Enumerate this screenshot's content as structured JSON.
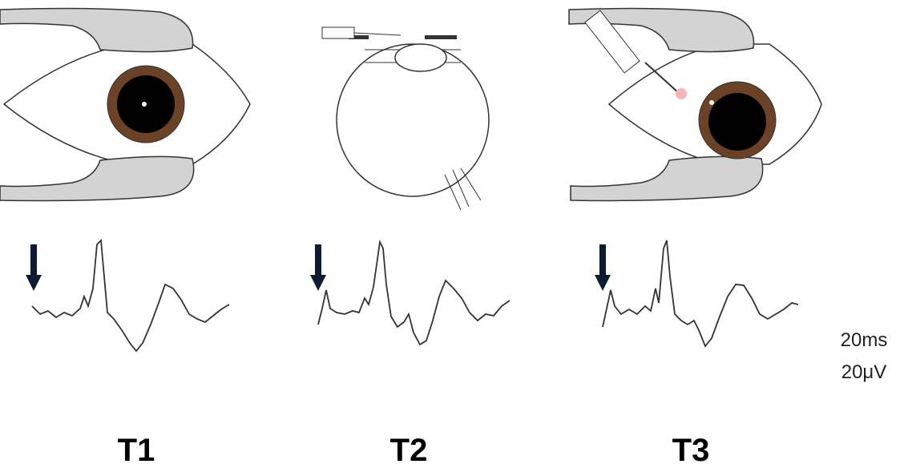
{
  "panels": [
    {
      "label": "T1"
    },
    {
      "label": "T2"
    },
    {
      "label": "T3"
    }
  ],
  "scale": {
    "time": "20ms",
    "voltage": "20μV"
  }
}
